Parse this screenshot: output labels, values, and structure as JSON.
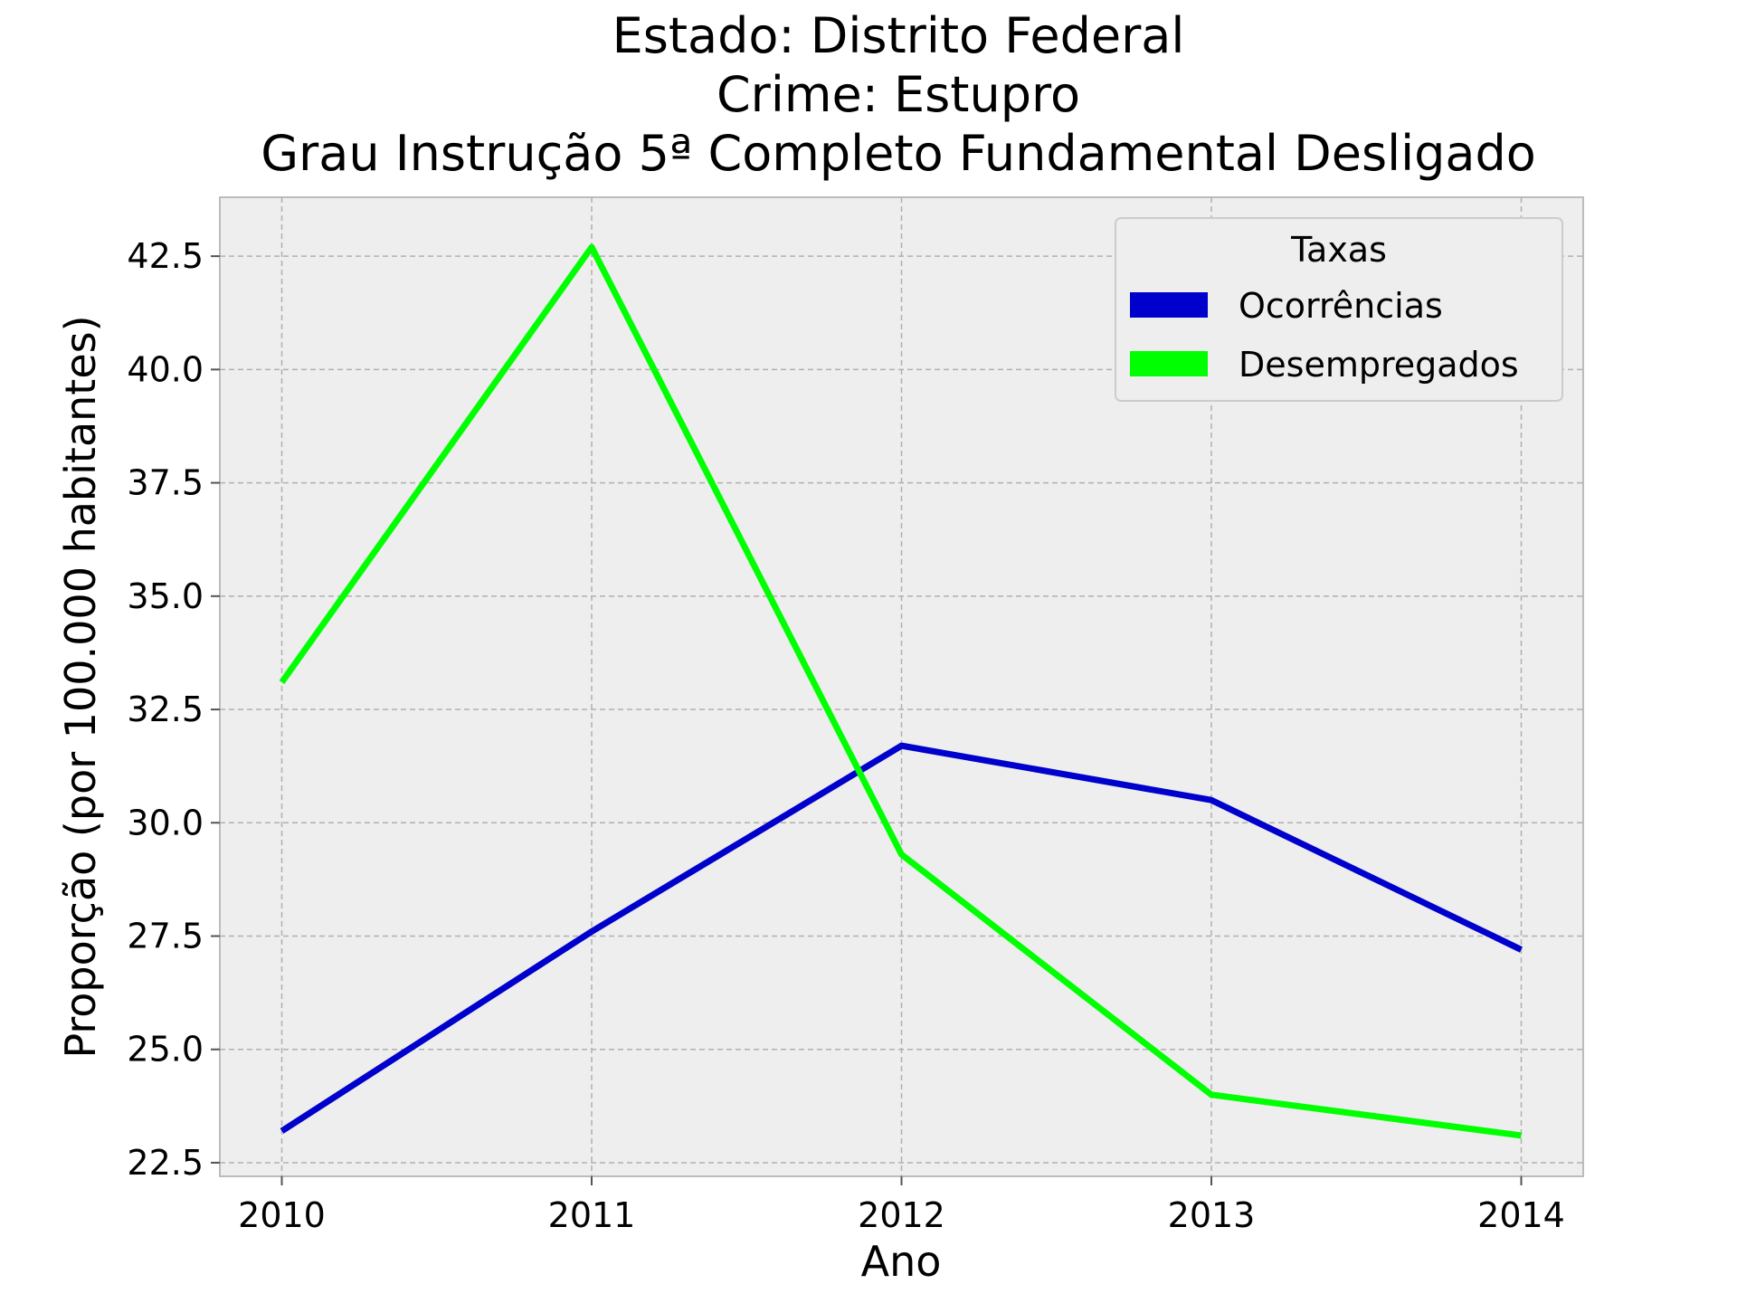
{
  "chart_data": {
    "type": "line",
    "title_lines": [
      "Estado: Distrito Federal",
      "Crime: Estupro",
      "Grau Instrução  5ª Completo Fundamental   Desligado"
    ],
    "xlabel": "Ano",
    "ylabel": "Proporção (por 100.000 habitantes)",
    "x": [
      2010,
      2011,
      2012,
      2013,
      2014
    ],
    "x_tick_labels": [
      "2010",
      "2011",
      "2012",
      "2013",
      "2014"
    ],
    "xlim": [
      2009.8,
      2014.2
    ],
    "ylim": [
      22.2,
      43.8
    ],
    "y_ticks": [
      22.5,
      25.0,
      27.5,
      30.0,
      32.5,
      35.0,
      37.5,
      40.0,
      42.5
    ],
    "y_tick_labels": [
      "22.5",
      "25.0",
      "27.5",
      "30.0",
      "32.5",
      "35.0",
      "37.5",
      "40.0",
      "42.5"
    ],
    "grid": true,
    "legend": {
      "title": "Taxas",
      "placement": "top-right"
    },
    "series": [
      {
        "name": "Ocorrências",
        "color": "#0000cc",
        "values": [
          23.2,
          27.6,
          31.7,
          30.5,
          27.2
        ]
      },
      {
        "name": "Desempregados",
        "color": "#00ff00",
        "values": [
          33.1,
          42.7,
          29.3,
          24.0,
          23.1
        ]
      }
    ]
  }
}
